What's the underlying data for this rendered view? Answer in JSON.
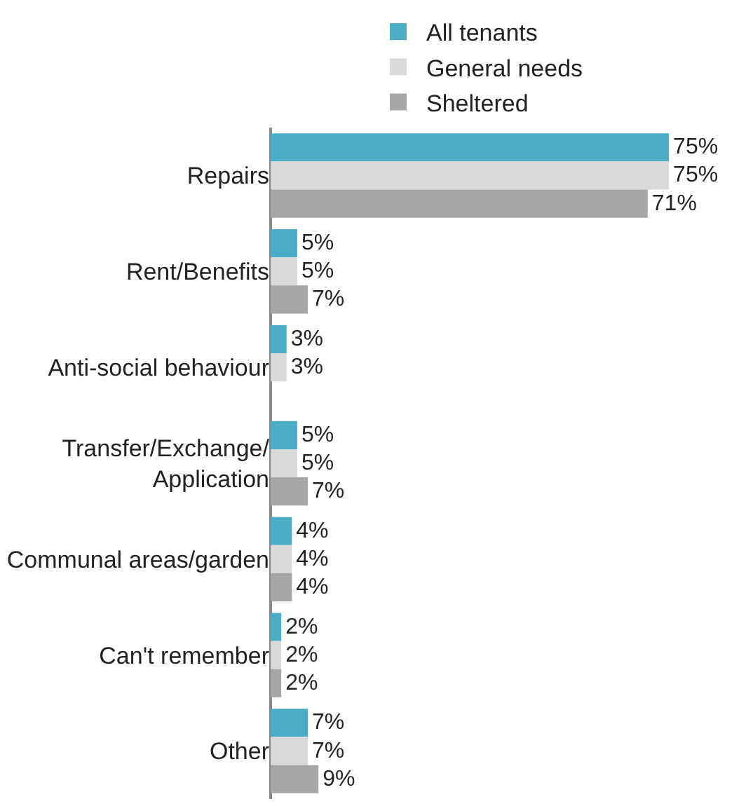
{
  "chart_data": {
    "type": "bar",
    "orientation": "horizontal",
    "legend": "top",
    "categories": [
      "Repairs",
      "Rent/Benefits",
      "Anti-social behaviour",
      "Transfer/Exchange/\nApplication",
      "Communal areas/garden",
      "Can't remember",
      "Other"
    ],
    "series": [
      {
        "name": "All tenants",
        "color": "#4bacc6",
        "values": [
          75,
          5,
          3,
          5,
          4,
          2,
          7
        ],
        "value_labels": [
          "75%",
          "5%",
          "3%",
          "5%",
          "4%",
          "2%",
          "7%"
        ]
      },
      {
        "name": "General needs",
        "color": "#d9d9d9",
        "values": [
          75,
          5,
          3,
          5,
          4,
          2,
          7
        ],
        "value_labels": [
          "75%",
          "5%",
          "3%",
          "5%",
          "4%",
          "2%",
          "7%"
        ]
      },
      {
        "name": "Sheltered",
        "color": "#a6a6a6",
        "values": [
          71,
          7,
          null,
          7,
          4,
          2,
          9
        ],
        "value_labels": [
          "71%",
          "7%",
          null,
          "7%",
          "4%",
          "2%",
          "9%"
        ]
      }
    ]
  }
}
